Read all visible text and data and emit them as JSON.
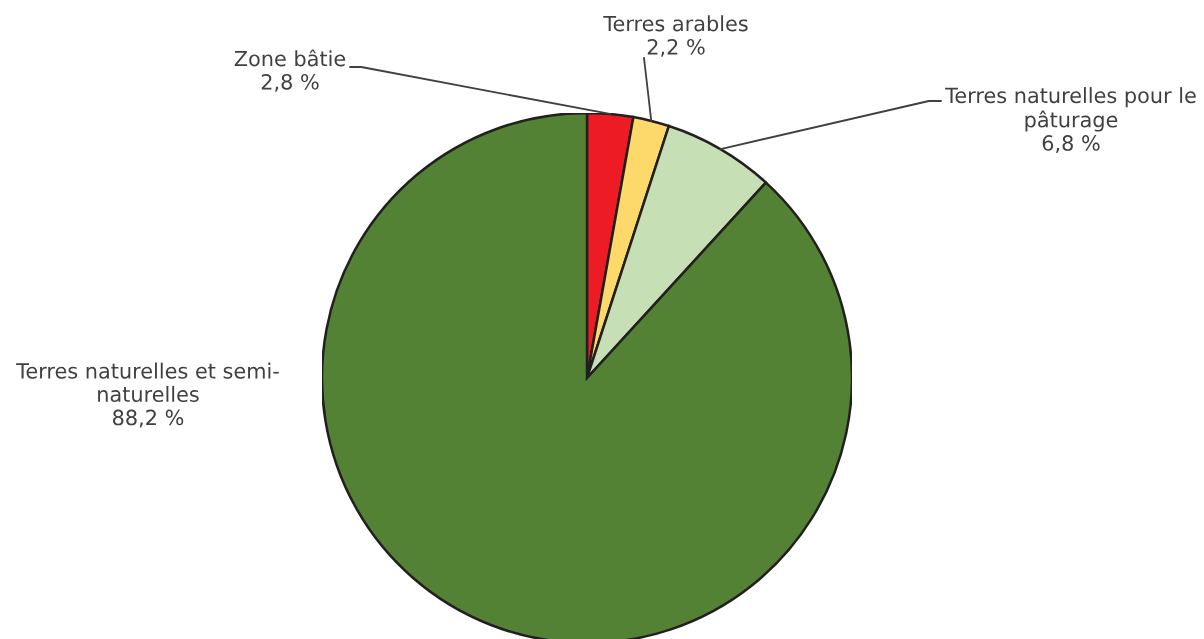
{
  "chart_data": {
    "type": "pie",
    "categories": [
      "Zone bâtie",
      "Terres arables",
      "Terres naturelles pour le pâturage",
      "Terres naturelles et semi-naturelles"
    ],
    "values": [
      2.8,
      2.2,
      6.8,
      88.2
    ],
    "colors": [
      "#ed1c24",
      "#fdd86a",
      "#c6dfb5",
      "#548235"
    ],
    "value_labels": [
      "2,8 %",
      "2,2 %",
      "6,8 %",
      "88,2 %"
    ]
  }
}
